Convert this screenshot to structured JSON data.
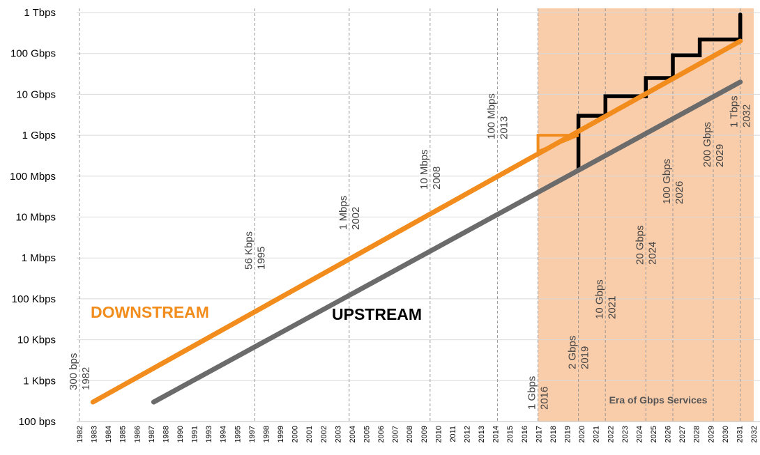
{
  "chart_data": {
    "type": "line",
    "y_scale": "log",
    "ylim_bps": [
      100,
      1000000000000
    ],
    "y_tick_labels": [
      "100 bps",
      "1 Kbps",
      "10 Kbps",
      "100 Kbps",
      "1 Mbps",
      "10 Mbps",
      "100 Mbps",
      "1 Gbps",
      "10 Gbps",
      "100 Gbps",
      "1 Tbps"
    ],
    "x_tick_labels": [
      "1982",
      "1983",
      "1984",
      "1985",
      "1986",
      "1987",
      "1988",
      "1990",
      "1991",
      "1993",
      "1994",
      "1995",
      "1997",
      "1998",
      "1999",
      "2000",
      "2001",
      "2002",
      "2003",
      "2004",
      "2005",
      "2006",
      "2007",
      "2008",
      "2009",
      "2010",
      "2011",
      "2012",
      "2013",
      "2014",
      "2015",
      "2016",
      "2017",
      "2018",
      "2019",
      "2020",
      "2021",
      "2022",
      "2023",
      "2024",
      "2025",
      "2026",
      "2027",
      "2028",
      "2029",
      "2030",
      "2031",
      "2032"
    ],
    "series": [
      {
        "name": "DOWNSTREAM",
        "color": "#f28c1c",
        "points": [
          [
            1983,
            300
          ],
          [
            2031,
            200000000000
          ]
        ]
      },
      {
        "name": "UPSTREAM",
        "color": "#6b6b6b",
        "points": [
          [
            1987.5,
            300
          ],
          [
            2031,
            20000000000
          ]
        ]
      },
      {
        "color": "#000000",
        "points": [
          [
            2019,
            150000000
          ],
          [
            2019,
            3000000000
          ],
          [
            2021,
            3000000000
          ],
          [
            2021,
            9000000000
          ],
          [
            2024,
            9000000000
          ],
          [
            2024,
            25000000000
          ],
          [
            2026,
            25000000000
          ],
          [
            2026,
            90000000000
          ],
          [
            2028,
            90000000000
          ],
          [
            2028,
            220000000000
          ],
          [
            2031,
            220000000000
          ],
          [
            2031,
            900000000000
          ]
        ]
      },
      {
        "color": "#f28c1c",
        "points": [
          [
            2016,
            400000000
          ],
          [
            2016,
            1000000000
          ],
          [
            2019,
            1000000000
          ],
          [
            2016,
            400000000
          ]
        ]
      }
    ],
    "gridlines_year": [
      1982,
      1995,
      2002,
      2008,
      2013,
      2016,
      2019,
      2021,
      2024,
      2026,
      2029,
      2031
    ],
    "annotations": [
      {
        "year": 1982,
        "line1": "300 bps",
        "line2": "1982"
      },
      {
        "year": 1995,
        "line1": "56 Kbps",
        "line2": "1995"
      },
      {
        "year": 2002,
        "line1": "1 Mbps",
        "line2": "2002"
      },
      {
        "year": 2008,
        "line1": "10 Mbps",
        "line2": "2008"
      },
      {
        "year": 2013,
        "line1": "100 Mbps",
        "line2": "2013"
      },
      {
        "year": 2016,
        "line1": "1 Gbps",
        "line2": "2016"
      },
      {
        "year": 2019,
        "line1": "2 Gbps",
        "line2": "2019"
      },
      {
        "year": 2021,
        "line1": "10 Gbps",
        "line2": "2021"
      },
      {
        "year": 2024,
        "line1": "20 Gbps",
        "line2": "2024"
      },
      {
        "year": 2026,
        "line1": "100 Gbps",
        "line2": "2026"
      },
      {
        "year": 2029,
        "line1": "200 Gbps",
        "line2": "2029"
      },
      {
        "year": 2031,
        "line1": "1 Tbps",
        "line2": "2032"
      }
    ],
    "shaded_region": {
      "from_year": 2016,
      "to_year": 2032,
      "label": "Era of Gbps Services",
      "color": "#f9ccaa"
    },
    "labels": {
      "downstream": "DOWNSTREAM",
      "upstream": "UPSTREAM"
    }
  }
}
